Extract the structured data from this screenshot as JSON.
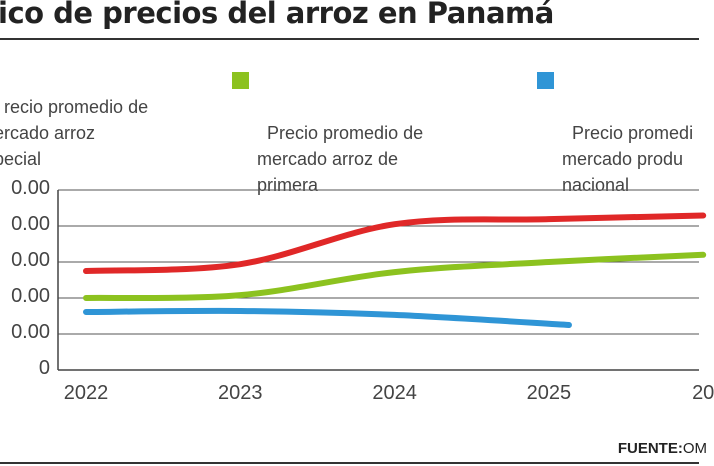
{
  "chart_data": {
    "type": "line",
    "title": "ico de precios del arroz en Panamá",
    "x": [
      2022,
      2023,
      2024,
      2025,
      2026
    ],
    "x_tick_labels": [
      "2022",
      "2023",
      "2024",
      "2025",
      "20"
    ],
    "y_tick_labels": [
      "0",
      "0.00",
      "0.00",
      "0.00",
      "0.00",
      "0.00"
    ],
    "ylim": [
      0,
      5
    ],
    "grid": true,
    "legend_placement": "top",
    "series": [
      {
        "name": "recio promedio de\nercado arroz\npecial",
        "color": "#e02828",
        "points": [
          [
            2022,
            2.75
          ],
          [
            2023,
            2.94
          ],
          [
            2024,
            4.05
          ],
          [
            2025,
            4.19
          ],
          [
            2026,
            4.29
          ]
        ]
      },
      {
        "name": "Precio promedio de\nmercado arroz de\nprimera",
        "color": "#8cc21f",
        "points": [
          [
            2022,
            2.0
          ],
          [
            2023,
            2.08
          ],
          [
            2024,
            2.72
          ],
          [
            2025,
            3.0
          ],
          [
            2026,
            3.2
          ]
        ]
      },
      {
        "name": "Precio promedi\nmercado produ\nnacional",
        "color": "#2f95d6",
        "points": [
          [
            2022,
            1.61
          ],
          [
            2023,
            1.64
          ],
          [
            2024,
            1.53
          ],
          [
            2025.13,
            1.25
          ]
        ]
      }
    ],
    "source_label": "FUENTE:",
    "source_value": "OM"
  }
}
